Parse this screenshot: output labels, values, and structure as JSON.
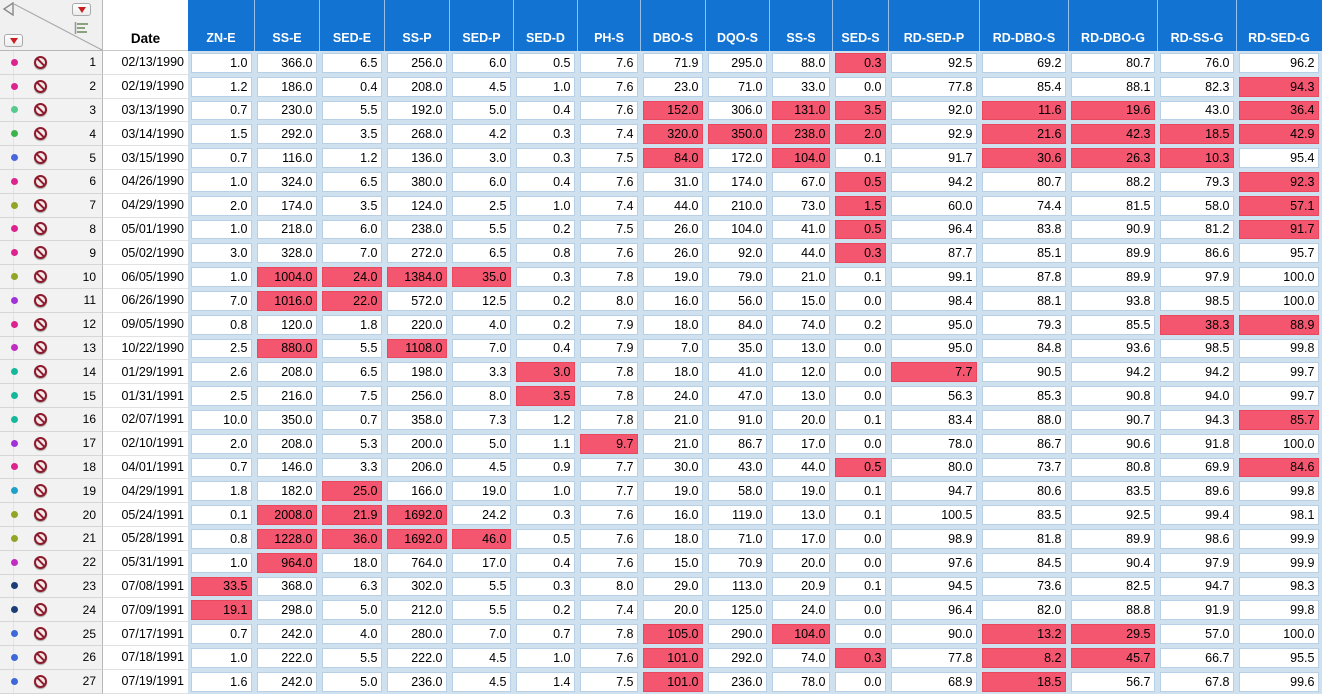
{
  "corner": {
    "collapse_icon": "left-open-triangle",
    "columns_menu_icon": "red-dropdown-triangle",
    "rows_menu_icon": "red-dropdown-triangle",
    "row_states_icon": "list-bars"
  },
  "colors": {
    "header_bg": "#1273d3",
    "highlight": "#f4566f",
    "grid_bg": "#cfe0ee",
    "exclude_icon": "#8e1b2c"
  },
  "table": {
    "date_header": "Date",
    "columns": [
      "ZN-E",
      "SS-E",
      "SED-E",
      "SS-P",
      "SED-P",
      "SED-D",
      "PH-S",
      "DBO-S",
      "DQO-S",
      "SS-S",
      "SED-S",
      "RD-SED-P",
      "RD-DBO-S",
      "RD-DBO-G",
      "RD-SS-G",
      "RD-SED-G"
    ],
    "rows": [
      {
        "n": "1",
        "date": "02/13/1990",
        "marker": "#dc2390",
        "excluded": true,
        "values": [
          "1.0",
          "366.0",
          "6.5",
          "256.0",
          "6.0",
          "0.5",
          "7.6",
          "71.9",
          "295.0",
          "88.0",
          "0.3",
          "92.5",
          "69.2",
          "80.7",
          "76.0",
          "96.2"
        ],
        "highlighted": [
          10
        ]
      },
      {
        "n": "2",
        "date": "02/19/1990",
        "marker": "#dc2390",
        "excluded": true,
        "values": [
          "1.2",
          "186.0",
          "0.4",
          "208.0",
          "4.5",
          "1.0",
          "7.6",
          "23.0",
          "71.0",
          "33.0",
          "0.0",
          "77.8",
          "85.4",
          "88.1",
          "82.3",
          "94.3"
        ],
        "highlighted": [
          15
        ]
      },
      {
        "n": "3",
        "date": "03/13/1990",
        "marker": "#57c88e",
        "excluded": true,
        "values": [
          "0.7",
          "230.0",
          "5.5",
          "192.0",
          "5.0",
          "0.4",
          "7.6",
          "152.0",
          "306.0",
          "131.0",
          "3.5",
          "92.0",
          "11.6",
          "19.6",
          "43.0",
          "36.4"
        ],
        "highlighted": [
          7,
          9,
          10,
          12,
          13,
          15
        ]
      },
      {
        "n": "4",
        "date": "03/14/1990",
        "marker": "#3cb44b",
        "excluded": true,
        "values": [
          "1.5",
          "292.0",
          "3.5",
          "268.0",
          "4.2",
          "0.3",
          "7.4",
          "320.0",
          "350.0",
          "238.0",
          "2.0",
          "92.9",
          "21.6",
          "42.3",
          "18.5",
          "42.9"
        ],
        "highlighted": [
          7,
          8,
          9,
          10,
          12,
          13,
          14,
          15
        ]
      },
      {
        "n": "5",
        "date": "03/15/1990",
        "marker": "#4a66dd",
        "excluded": true,
        "values": [
          "0.7",
          "116.0",
          "1.2",
          "136.0",
          "3.0",
          "0.3",
          "7.5",
          "84.0",
          "172.0",
          "104.0",
          "0.1",
          "91.7",
          "30.6",
          "26.3",
          "10.3",
          "95.4"
        ],
        "highlighted": [
          7,
          9,
          12,
          13,
          14
        ]
      },
      {
        "n": "6",
        "date": "04/26/1990",
        "marker": "#dc2390",
        "excluded": true,
        "values": [
          "1.0",
          "324.0",
          "6.5",
          "380.0",
          "6.0",
          "0.4",
          "7.6",
          "31.0",
          "174.0",
          "67.0",
          "0.5",
          "94.2",
          "80.7",
          "88.2",
          "79.3",
          "92.3"
        ],
        "highlighted": [
          10,
          15
        ]
      },
      {
        "n": "7",
        "date": "04/29/1990",
        "marker": "#93a426",
        "excluded": true,
        "values": [
          "2.0",
          "174.0",
          "3.5",
          "124.0",
          "2.5",
          "1.0",
          "7.4",
          "44.0",
          "210.0",
          "73.0",
          "1.5",
          "60.0",
          "74.4",
          "81.5",
          "58.0",
          "57.1"
        ],
        "highlighted": [
          10,
          15
        ]
      },
      {
        "n": "8",
        "date": "05/01/1990",
        "marker": "#dc2390",
        "excluded": true,
        "values": [
          "1.0",
          "218.0",
          "6.0",
          "238.0",
          "5.5",
          "0.2",
          "7.5",
          "26.0",
          "104.0",
          "41.0",
          "0.5",
          "96.4",
          "83.8",
          "90.9",
          "81.2",
          "91.7"
        ],
        "highlighted": [
          10,
          15
        ]
      },
      {
        "n": "9",
        "date": "05/02/1990",
        "marker": "#dc2390",
        "excluded": true,
        "values": [
          "3.0",
          "328.0",
          "7.0",
          "272.0",
          "6.5",
          "0.8",
          "7.6",
          "26.0",
          "92.0",
          "44.0",
          "0.3",
          "87.7",
          "85.1",
          "89.9",
          "86.6",
          "95.7"
        ],
        "highlighted": [
          10
        ]
      },
      {
        "n": "10",
        "date": "06/05/1990",
        "marker": "#93a426",
        "excluded": true,
        "values": [
          "1.0",
          "1004.0",
          "24.0",
          "1384.0",
          "35.0",
          "0.3",
          "7.8",
          "19.0",
          "79.0",
          "21.0",
          "0.1",
          "99.1",
          "87.8",
          "89.9",
          "97.9",
          "100.0"
        ],
        "highlighted": [
          1,
          2,
          3,
          4
        ]
      },
      {
        "n": "11",
        "date": "06/26/1990",
        "marker": "#a132d6",
        "excluded": true,
        "values": [
          "7.0",
          "1016.0",
          "22.0",
          "572.0",
          "12.5",
          "0.2",
          "8.0",
          "16.0",
          "56.0",
          "15.0",
          "0.0",
          "98.4",
          "88.1",
          "93.8",
          "98.5",
          "100.0"
        ],
        "highlighted": [
          1,
          2
        ]
      },
      {
        "n": "12",
        "date": "09/05/1990",
        "marker": "#dc2390",
        "excluded": true,
        "values": [
          "0.8",
          "120.0",
          "1.8",
          "220.0",
          "4.0",
          "0.2",
          "7.9",
          "18.0",
          "84.0",
          "74.0",
          "0.2",
          "95.0",
          "79.3",
          "85.5",
          "38.3",
          "88.9"
        ],
        "highlighted": [
          14,
          15
        ]
      },
      {
        "n": "13",
        "date": "10/22/1990",
        "marker": "#c12cc1",
        "excluded": true,
        "values": [
          "2.5",
          "880.0",
          "5.5",
          "1108.0",
          "7.0",
          "0.4",
          "7.9",
          "7.0",
          "35.0",
          "13.0",
          "0.0",
          "95.0",
          "84.8",
          "93.6",
          "98.5",
          "99.8"
        ],
        "highlighted": [
          1,
          3
        ]
      },
      {
        "n": "14",
        "date": "01/29/1991",
        "marker": "#16b89b",
        "excluded": true,
        "values": [
          "2.6",
          "208.0",
          "6.5",
          "198.0",
          "3.3",
          "3.0",
          "7.8",
          "18.0",
          "41.0",
          "12.0",
          "0.0",
          "7.7",
          "90.5",
          "94.2",
          "94.2",
          "99.7"
        ],
        "highlighted": [
          5,
          11
        ]
      },
      {
        "n": "15",
        "date": "01/31/1991",
        "marker": "#16b89b",
        "excluded": true,
        "values": [
          "2.5",
          "216.0",
          "7.5",
          "256.0",
          "8.0",
          "3.5",
          "7.8",
          "24.0",
          "47.0",
          "13.0",
          "0.0",
          "56.3",
          "85.3",
          "90.8",
          "94.0",
          "99.7"
        ],
        "highlighted": [
          5
        ]
      },
      {
        "n": "16",
        "date": "02/07/1991",
        "marker": "#16b89b",
        "excluded": true,
        "values": [
          "10.0",
          "350.0",
          "0.7",
          "358.0",
          "7.3",
          "1.2",
          "7.8",
          "21.0",
          "91.0",
          "20.0",
          "0.1",
          "83.4",
          "88.0",
          "90.7",
          "94.3",
          "85.7"
        ],
        "highlighted": [
          15
        ]
      },
      {
        "n": "17",
        "date": "02/10/1991",
        "marker": "#a132d6",
        "excluded": true,
        "values": [
          "2.0",
          "208.0",
          "5.3",
          "200.0",
          "5.0",
          "1.1",
          "9.7",
          "21.0",
          "86.7",
          "17.0",
          "0.0",
          "78.0",
          "86.7",
          "90.6",
          "91.8",
          "100.0"
        ],
        "highlighted": [
          6
        ]
      },
      {
        "n": "18",
        "date": "04/01/1991",
        "marker": "#dc2390",
        "excluded": true,
        "values": [
          "0.7",
          "146.0",
          "3.3",
          "206.0",
          "4.5",
          "0.9",
          "7.7",
          "30.0",
          "43.0",
          "44.0",
          "0.5",
          "80.0",
          "73.7",
          "80.8",
          "69.9",
          "84.6"
        ],
        "highlighted": [
          10,
          15
        ]
      },
      {
        "n": "19",
        "date": "04/29/1991",
        "marker": "#1fa0c8",
        "excluded": true,
        "values": [
          "1.8",
          "182.0",
          "25.0",
          "166.0",
          "19.0",
          "1.0",
          "7.7",
          "19.0",
          "58.0",
          "19.0",
          "0.1",
          "94.7",
          "80.6",
          "83.5",
          "89.6",
          "99.8"
        ],
        "highlighted": [
          2
        ]
      },
      {
        "n": "20",
        "date": "05/24/1991",
        "marker": "#93a426",
        "excluded": true,
        "values": [
          "0.1",
          "2008.0",
          "21.9",
          "1692.0",
          "24.2",
          "0.3",
          "7.6",
          "16.0",
          "119.0",
          "13.0",
          "0.1",
          "100.5",
          "83.5",
          "92.5",
          "99.4",
          "98.1"
        ],
        "highlighted": [
          1,
          2,
          3
        ]
      },
      {
        "n": "21",
        "date": "05/28/1991",
        "marker": "#93a426",
        "excluded": true,
        "values": [
          "0.8",
          "1228.0",
          "36.0",
          "1692.0",
          "46.0",
          "0.5",
          "7.6",
          "18.0",
          "71.0",
          "17.0",
          "0.0",
          "98.9",
          "81.8",
          "89.9",
          "98.6",
          "99.9"
        ],
        "highlighted": [
          1,
          2,
          3,
          4
        ]
      },
      {
        "n": "22",
        "date": "05/31/1991",
        "marker": "#c12cc1",
        "excluded": true,
        "values": [
          "1.0",
          "964.0",
          "18.0",
          "764.0",
          "17.0",
          "0.4",
          "7.6",
          "15.0",
          "70.9",
          "20.0",
          "0.0",
          "97.6",
          "84.5",
          "90.4",
          "97.9",
          "99.9"
        ],
        "highlighted": [
          1
        ]
      },
      {
        "n": "23",
        "date": "07/08/1991",
        "marker": "#1c3e78",
        "excluded": true,
        "values": [
          "33.5",
          "368.0",
          "6.3",
          "302.0",
          "5.5",
          "0.3",
          "8.0",
          "29.0",
          "113.0",
          "20.9",
          "0.1",
          "94.5",
          "73.6",
          "82.5",
          "94.7",
          "98.3"
        ],
        "highlighted": [
          0
        ]
      },
      {
        "n": "24",
        "date": "07/09/1991",
        "marker": "#1c3e78",
        "excluded": true,
        "values": [
          "19.1",
          "298.0",
          "5.0",
          "212.0",
          "5.5",
          "0.2",
          "7.4",
          "20.0",
          "125.0",
          "24.0",
          "0.0",
          "96.4",
          "82.0",
          "88.8",
          "91.9",
          "99.8"
        ],
        "highlighted": [
          0
        ]
      },
      {
        "n": "25",
        "date": "07/17/1991",
        "marker": "#3c68d8",
        "excluded": true,
        "values": [
          "0.7",
          "242.0",
          "4.0",
          "280.0",
          "7.0",
          "0.7",
          "7.8",
          "105.0",
          "290.0",
          "104.0",
          "0.0",
          "90.0",
          "13.2",
          "29.5",
          "57.0",
          "100.0"
        ],
        "highlighted": [
          7,
          9,
          12,
          13
        ]
      },
      {
        "n": "26",
        "date": "07/18/1991",
        "marker": "#3c68d8",
        "excluded": true,
        "values": [
          "1.0",
          "222.0",
          "5.5",
          "222.0",
          "4.5",
          "1.0",
          "7.6",
          "101.0",
          "292.0",
          "74.0",
          "0.3",
          "77.8",
          "8.2",
          "45.7",
          "66.7",
          "95.5"
        ],
        "highlighted": [
          7,
          10,
          12,
          13
        ]
      },
      {
        "n": "27",
        "date": "07/19/1991",
        "marker": "#3c68d8",
        "excluded": true,
        "values": [
          "1.6",
          "242.0",
          "5.0",
          "236.0",
          "4.5",
          "1.4",
          "7.5",
          "101.0",
          "236.0",
          "78.0",
          "0.0",
          "68.9",
          "18.5",
          "56.7",
          "67.8",
          "99.6"
        ],
        "highlighted": [
          7,
          12
        ]
      }
    ]
  }
}
